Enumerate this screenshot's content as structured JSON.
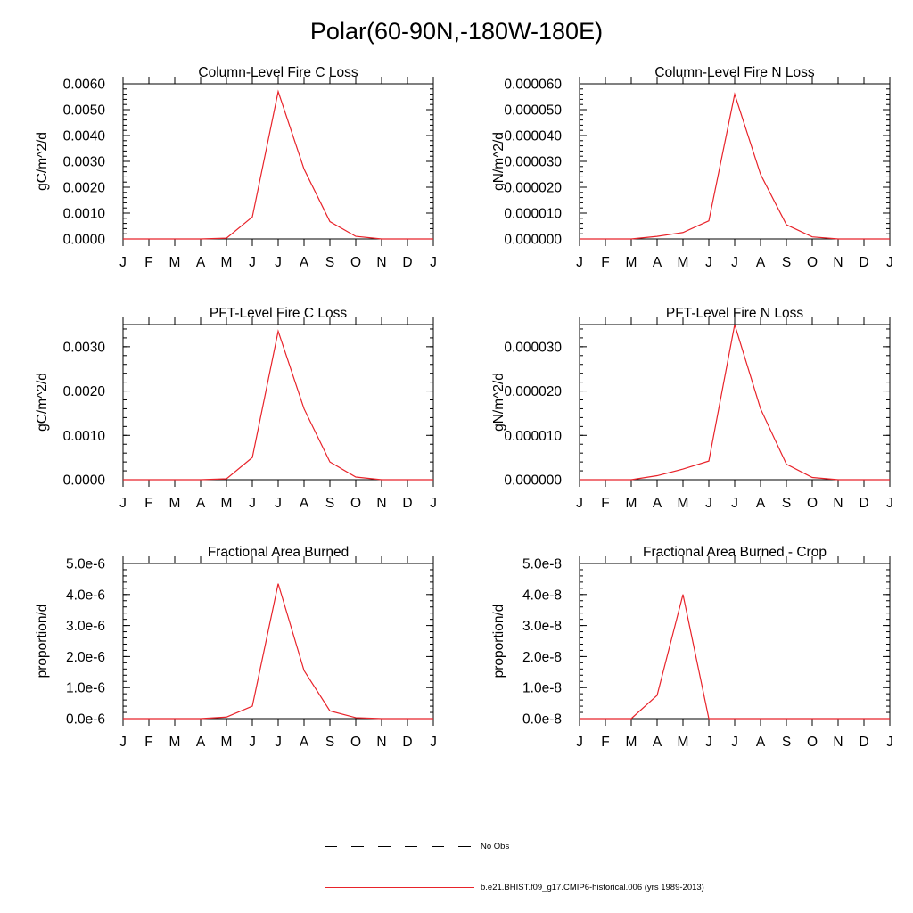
{
  "page_title": "Polar(60-90N,-180W-180E)",
  "colors": {
    "model_series": "#e8232a",
    "axis": "#000000",
    "obs_series": "#000000"
  },
  "legend": {
    "items": [
      {
        "label": "No Obs",
        "style": "dashed",
        "color": "#000000"
      },
      {
        "label": "b.e21.BHIST.f09_g17.CMIP6-historical.006 (yrs 1989-2013)",
        "style": "solid",
        "color": "#e8232a"
      }
    ]
  },
  "chart_data": [
    {
      "type": "line",
      "title": "Column-Level Fire C Loss",
      "xlabel": "",
      "ylabel": "gC/m^2/d",
      "categories": [
        "J",
        "F",
        "M",
        "A",
        "M",
        "J",
        "J",
        "A",
        "S",
        "O",
        "N",
        "D",
        "J"
      ],
      "ylim": [
        0,
        0.006
      ],
      "yticks": [
        0,
        0.001,
        0.002,
        0.003,
        0.004,
        0.005,
        0.006
      ],
      "ytick_labels": [
        "0.0000",
        "0.0010",
        "0.0020",
        "0.0030",
        "0.0040",
        "0.0050",
        "0.0060"
      ],
      "series": [
        {
          "name": "b.e21.BHIST.f09_g17.CMIP6-historical.006 (yrs 1989-2013)",
          "values": [
            0,
            0,
            0,
            0,
            3e-05,
            0.00085,
            0.0057,
            0.0027,
            0.00067,
            0.0001,
            0,
            0,
            0
          ]
        }
      ]
    },
    {
      "type": "line",
      "title": "Column-Level Fire N Loss",
      "xlabel": "",
      "ylabel": "gN/m^2/d",
      "categories": [
        "J",
        "F",
        "M",
        "A",
        "M",
        "J",
        "J",
        "A",
        "S",
        "O",
        "N",
        "D",
        "J"
      ],
      "ylim": [
        0,
        6e-05
      ],
      "yticks": [
        0,
        1e-05,
        2e-05,
        3e-05,
        4e-05,
        5e-05,
        6e-05
      ],
      "ytick_labels": [
        "0.000000",
        "0.000010",
        "0.000020",
        "0.000030",
        "0.000040",
        "0.000050",
        "0.000060"
      ],
      "series": [
        {
          "name": "b.e21.BHIST.f09_g17.CMIP6-historical.006 (yrs 1989-2013)",
          "values": [
            0,
            0,
            0,
            1e-06,
            2.5e-06,
            7e-06,
            5.6e-05,
            2.5e-05,
            5.5e-06,
            8e-07,
            0,
            0,
            0
          ]
        }
      ]
    },
    {
      "type": "line",
      "title": "PFT-Level Fire C Loss",
      "xlabel": "",
      "ylabel": "gC/m^2/d",
      "categories": [
        "J",
        "F",
        "M",
        "A",
        "M",
        "J",
        "J",
        "A",
        "S",
        "O",
        "N",
        "D",
        "J"
      ],
      "ylim": [
        0,
        0.0035
      ],
      "yticks": [
        0,
        0.001,
        0.002,
        0.003
      ],
      "ytick_labels": [
        "0.0000",
        "0.0010",
        "0.0020",
        "0.0030"
      ],
      "series": [
        {
          "name": "b.e21.BHIST.f09_g17.CMIP6-historical.006 (yrs 1989-2013)",
          "values": [
            0,
            0,
            0,
            0,
            2e-05,
            0.0005,
            0.00335,
            0.0016,
            0.0004,
            6e-05,
            0,
            0,
            0
          ]
        }
      ]
    },
    {
      "type": "line",
      "title": "PFT-Level Fire N Loss",
      "xlabel": "",
      "ylabel": "gN/m^2/d",
      "categories": [
        "J",
        "F",
        "M",
        "A",
        "M",
        "J",
        "J",
        "A",
        "S",
        "O",
        "N",
        "D",
        "J"
      ],
      "ylim": [
        0,
        3.5e-05
      ],
      "yticks": [
        0,
        1e-05,
        2e-05,
        3e-05
      ],
      "ytick_labels": [
        "0.000000",
        "0.000010",
        "0.000020",
        "0.000030"
      ],
      "series": [
        {
          "name": "b.e21.BHIST.f09_g17.CMIP6-historical.006 (yrs 1989-2013)",
          "values": [
            0,
            0,
            0,
            9e-07,
            2.4e-06,
            4.2e-06,
            3.5e-05,
            1.6e-05,
            3.5e-06,
            5e-07,
            0,
            0,
            0
          ]
        }
      ]
    },
    {
      "type": "line",
      "title": "Fractional Area Burned",
      "xlabel": "",
      "ylabel": "proportion/d",
      "categories": [
        "J",
        "F",
        "M",
        "A",
        "M",
        "J",
        "J",
        "A",
        "S",
        "O",
        "N",
        "D",
        "J"
      ],
      "ylim": [
        0,
        5e-06
      ],
      "yticks": [
        0,
        1e-06,
        2e-06,
        3e-06,
        4e-06,
        5e-06
      ],
      "ytick_labels": [
        "0.0e-6",
        "1.0e-6",
        "2.0e-6",
        "3.0e-6",
        "4.0e-6",
        "5.0e-6"
      ],
      "series": [
        {
          "name": "b.e21.BHIST.f09_g17.CMIP6-historical.006 (yrs 1989-2013)",
          "values": [
            0,
            0,
            0,
            0,
            5e-08,
            4e-07,
            4.35e-06,
            1.55e-06,
            2.5e-07,
            3e-08,
            0,
            0,
            0
          ]
        }
      ]
    },
    {
      "type": "line",
      "title": "Fractional Area Burned - Crop",
      "xlabel": "",
      "ylabel": "proportion/d",
      "categories": [
        "J",
        "F",
        "M",
        "A",
        "M",
        "J",
        "J",
        "A",
        "S",
        "O",
        "N",
        "D",
        "J"
      ],
      "ylim": [
        0,
        5e-08
      ],
      "yticks": [
        0,
        1e-08,
        2e-08,
        3e-08,
        4e-08,
        5e-08
      ],
      "ytick_labels": [
        "0.0e-8",
        "1.0e-8",
        "2.0e-8",
        "3.0e-8",
        "4.0e-8",
        "5.0e-8"
      ],
      "series": [
        {
          "name": "b.e21.BHIST.f09_g17.CMIP6-historical.006 (yrs 1989-2013)",
          "values": [
            0,
            0,
            0,
            7.5e-09,
            4e-08,
            0,
            0,
            0,
            0,
            0,
            0,
            0,
            0
          ]
        }
      ]
    }
  ]
}
